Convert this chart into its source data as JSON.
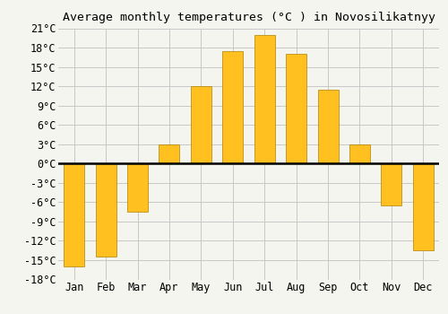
{
  "title": "Average monthly temperatures (°C ) in Novosilikatnyy",
  "months": [
    "Jan",
    "Feb",
    "Mar",
    "Apr",
    "May",
    "Jun",
    "Jul",
    "Aug",
    "Sep",
    "Oct",
    "Nov",
    "Dec"
  ],
  "values": [
    -16,
    -14.5,
    -7.5,
    3,
    12,
    17.5,
    20,
    17,
    11.5,
    3,
    -6.5,
    -13.5
  ],
  "bar_color": "#FFC020",
  "bar_edge_color": "#B08000",
  "background_color": "#F5F5F0",
  "grid_color": "#C8C8C8",
  "ylim": [
    -18,
    21
  ],
  "yticks": [
    -18,
    -15,
    -12,
    -9,
    -6,
    -3,
    0,
    3,
    6,
    9,
    12,
    15,
    18,
    21
  ],
  "ytick_labels": [
    "-18°C",
    "-15°C",
    "-12°C",
    "-9°C",
    "-6°C",
    "-3°C",
    "0°C",
    "3°C",
    "6°C",
    "9°C",
    "12°C",
    "15°C",
    "18°C",
    "21°C"
  ],
  "zero_line_color": "#000000",
  "title_fontsize": 9.5,
  "tick_fontsize": 8.5,
  "bar_width": 0.65
}
